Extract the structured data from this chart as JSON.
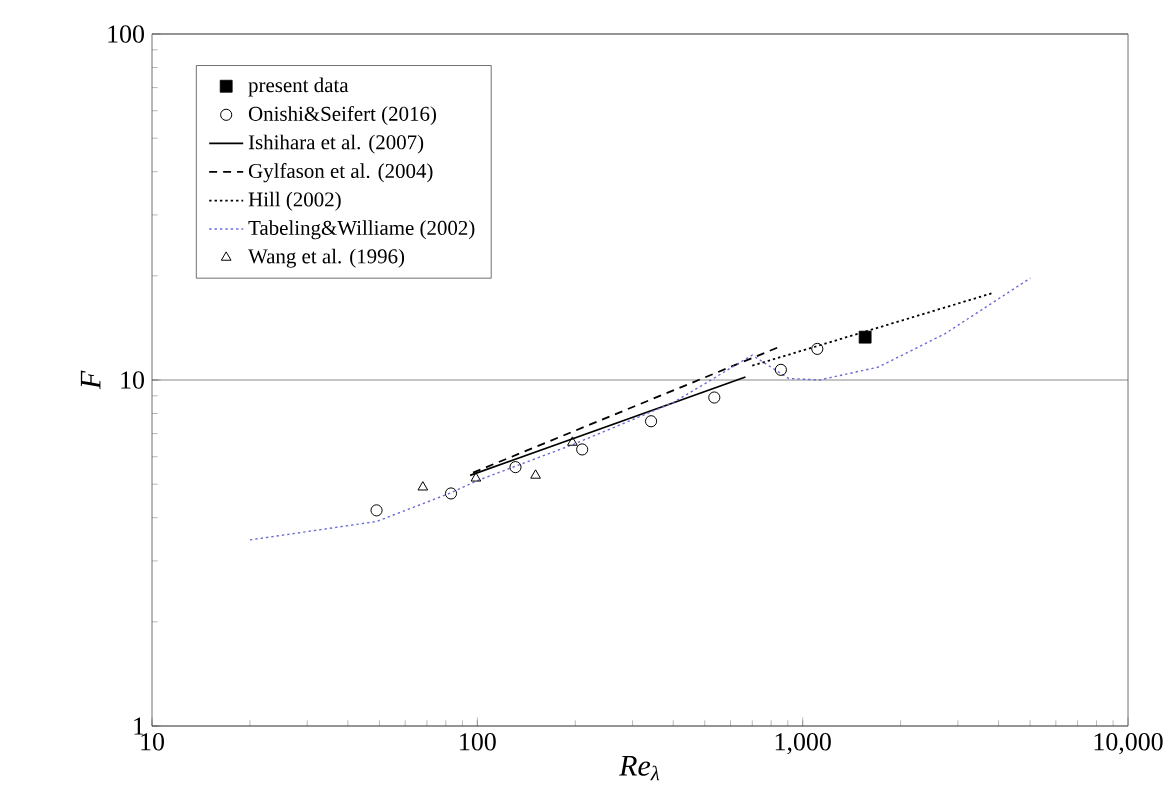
{
  "chart_data": {
    "type": "line",
    "xlabel": "Re$_{λ}$",
    "ylabel": "F",
    "log": "xy",
    "grid": "y",
    "legend": "top left",
    "xlim": [
      10,
      10000
    ],
    "ylim": [
      1,
      100
    ],
    "xticks": [
      10,
      100,
      {
        "value": 1000,
        "label": "1,000"
      },
      {
        "value": 10000,
        "label": "10,000"
      }
    ],
    "yticks": [
      1,
      10,
      100
    ],
    "series": [
      {
        "name": "present data",
        "type": "scatter",
        "marker": "square",
        "color": "#000000",
        "x": [
          1556
        ],
        "values": [
          13.3
        ]
      },
      {
        "name": "Onishi&Seifert (2016)",
        "type": "scatter",
        "marker": "circle",
        "color": "#000000",
        "x": [
          49,
          83,
          131,
          210,
          342,
          535,
          857,
          1109
        ],
        "values": [
          4.2,
          4.7,
          5.6,
          6.3,
          7.6,
          8.9,
          10.7,
          12.3
        ]
      },
      {
        "name": "Ishihara et al. (2007)",
        "line_style": "solid",
        "color": "#000000",
        "x": [
          95,
          667
        ],
        "values": [
          5.3,
          10.2
        ]
      },
      {
        "name": "Gylfason et al. (2004)",
        "line_style": "dashed",
        "color": "#000000",
        "x": [
          97,
          836
        ],
        "values": [
          5.4,
          12.4
        ]
      },
      {
        "name": "Hill (2002)",
        "line_style": "dotted",
        "color": "#000000",
        "x": [
          700,
          3810
        ],
        "values": [
          11.0,
          17.8
        ]
      },
      {
        "name": "Tabeling&Williame (2002)",
        "line_style": "dotted",
        "color": "#6b6bd6",
        "x": [
          20,
          49,
          82,
          99,
          196,
          400,
          700,
          906,
          1126,
          1710,
          2735,
          5010
        ],
        "values": [
          3.45,
          3.9,
          4.7,
          5.1,
          6.5,
          8.6,
          11.8,
          10.1,
          10.0,
          10.9,
          13.6,
          19.7
        ]
      },
      {
        "name": "Wang et al. (1996)",
        "type": "scatter",
        "marker": "triangle",
        "color": "#000000",
        "x": [
          68,
          99,
          151,
          196
        ],
        "values": [
          4.9,
          5.2,
          5.3,
          6.6
        ]
      }
    ]
  }
}
